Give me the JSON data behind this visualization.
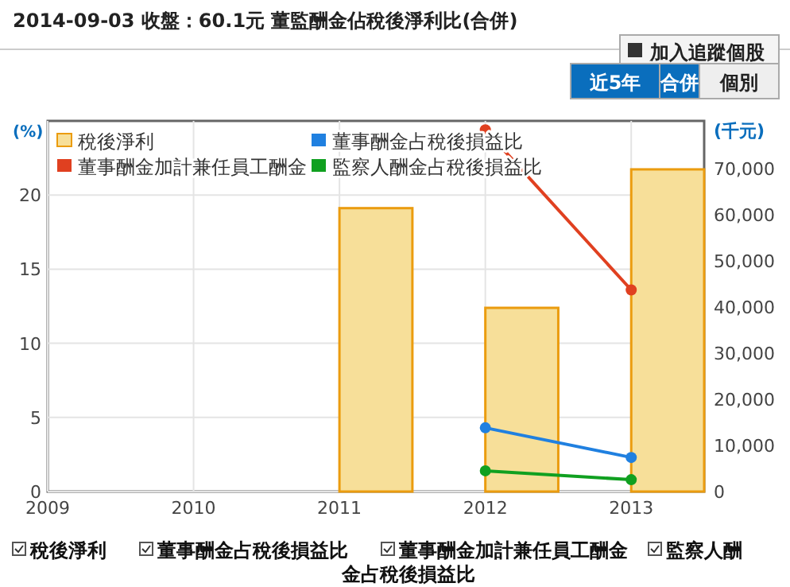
{
  "chart_data": {
    "type": "bar",
    "title": "2014-09-03 收盤：60.1元 董監酬金佔稅後淨利比(合併)",
    "ylabel": "(%)",
    "y2label": "(千元)",
    "annotations": [
      "加入追蹤個股",
      "近5年",
      "合併",
      "個別"
    ],
    "x": [
      2012,
      2013
    ],
    "series": [
      {
        "name": "稅後淨利",
        "axis": "y2",
        "color": "#f7df99",
        "x": [
          2011.25,
          2012.25,
          2013.25
        ],
        "values": [
          61400,
          39800,
          69800
        ]
      },
      {
        "name": "董事酬金占稅後損益比",
        "type": "line",
        "color": "#2080e0",
        "values": [
          4.3,
          2.3
        ]
      },
      {
        "name": "董事酬金加計兼任員工酬金",
        "type": "line",
        "color": "#e04020",
        "values": [
          24.4,
          13.6
        ]
      },
      {
        "name": "監察人酬金占稅後損益比",
        "type": "line",
        "color": "#10a020",
        "values": [
          1.4,
          0.8
        ]
      }
    ],
    "xlim": [
      2009,
      2013.5
    ],
    "xticks": [
      2009,
      2010,
      2011,
      2012,
      2013
    ],
    "ylim": [
      0,
      25
    ],
    "yticks": [
      0,
      5,
      10,
      15,
      20
    ],
    "y2lim": [
      0,
      80300
    ],
    "y2ticks": [
      {
        "value": 0,
        "label": "0"
      },
      {
        "value": 10000,
        "label": "10,000"
      },
      {
        "value": 20000,
        "label": "20,000"
      },
      {
        "value": 30000,
        "label": "30,000"
      },
      {
        "value": 40000,
        "label": "40,000"
      },
      {
        "value": 50000,
        "label": "50,000"
      },
      {
        "value": 60000,
        "label": "60,000"
      },
      {
        "value": 70000,
        "label": "70,000"
      }
    ],
    "grid": true,
    "legend": "top left",
    "marker": "circle"
  }
}
